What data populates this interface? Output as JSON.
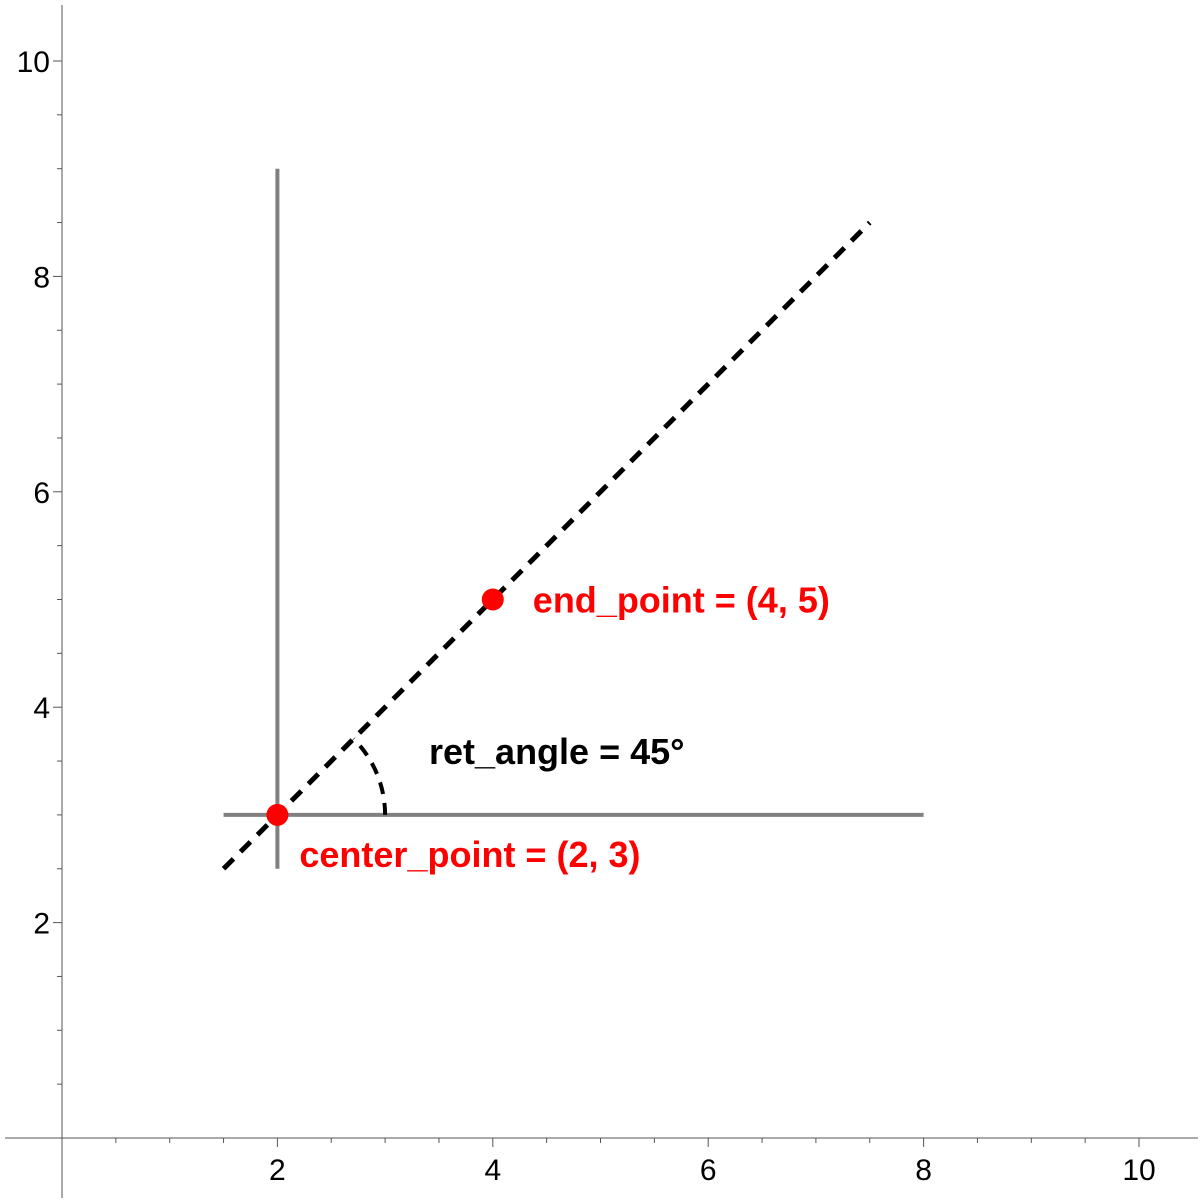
{
  "chart_data": {
    "type": "scatter",
    "xlim": [
      0,
      10
    ],
    "ylim": [
      0,
      10
    ],
    "x_ticks": [
      2,
      4,
      6,
      8,
      10
    ],
    "y_ticks": [
      2,
      4,
      6,
      8,
      10
    ],
    "x_tick_labels": [
      "2",
      "4",
      "6",
      "8",
      "10"
    ],
    "y_tick_labels": [
      "2",
      "4",
      "6",
      "8",
      "10"
    ],
    "minor_tick_step": 0.5,
    "grid": false,
    "reference_lines": {
      "horizontal": {
        "x": [
          1.5,
          8
        ],
        "y": 3
      },
      "vertical": {
        "x": 2,
        "y": [
          2.5,
          9
        ]
      }
    },
    "dashed_ray": {
      "from": [
        1.5,
        2.5
      ],
      "to": [
        7.5,
        8.5
      ]
    },
    "points": [
      {
        "id": "center",
        "x": 2,
        "y": 3,
        "label": "center_point = (2, 3)"
      },
      {
        "id": "end",
        "x": 4,
        "y": 5,
        "label": "end_point = (4, 5)"
      }
    ],
    "angle_arc": {
      "center": [
        2,
        3
      ],
      "radius": 1,
      "from_deg": 0,
      "to_deg": 45
    },
    "angle_label": "ret_angle = 45°",
    "colors": {
      "points": "#ff0000",
      "point_labels": "#ff0000",
      "reference_lines": "#808080",
      "dashed_ray": "#000000",
      "axes": "#555555"
    }
  }
}
